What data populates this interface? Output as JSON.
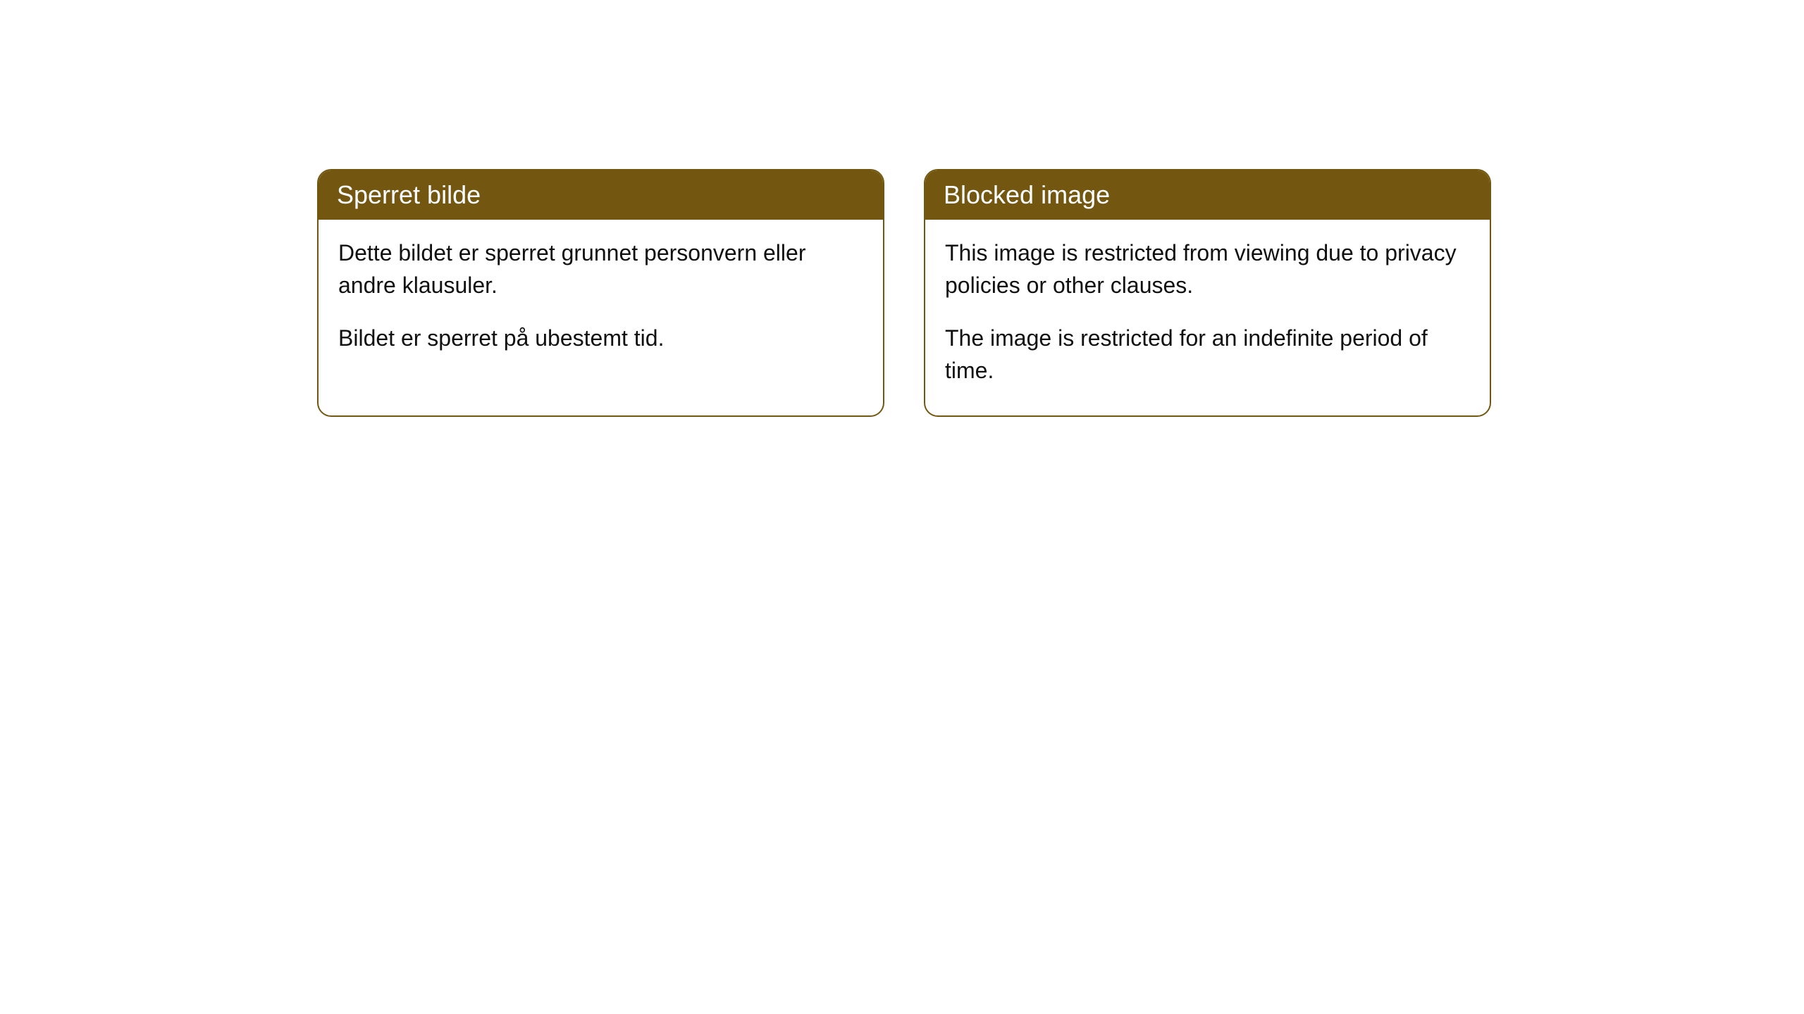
{
  "cards": [
    {
      "title": "Sperret bilde",
      "paragraph1": "Dette bildet er sperret grunnet personvern eller andre klausuler.",
      "paragraph2": "Bildet er sperret på ubestemt tid."
    },
    {
      "title": "Blocked image",
      "paragraph1": "This image is restricted from viewing due to privacy policies or other clauses.",
      "paragraph2": "The image is restricted for an indefinite period of time."
    }
  ],
  "styling": {
    "header_background_color": "#735710",
    "header_text_color": "#ffffff",
    "border_color": "#735710",
    "body_background_color": "#ffffff",
    "body_text_color": "#101010",
    "border_radius": 20,
    "header_fontsize": 36,
    "body_fontsize": 32
  }
}
